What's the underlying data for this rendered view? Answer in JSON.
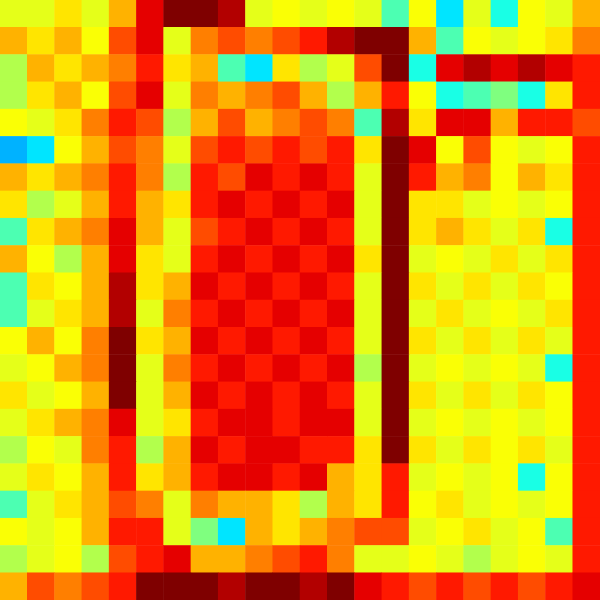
{
  "chart_data": {
    "type": "heatmap",
    "tick_labels": false,
    "zlim": [
      0,
      1
    ],
    "cells": [
      [
        0.6,
        0.6,
        0.65,
        0.6,
        0.7,
        0.9,
        1,
        1,
        0.95,
        0.6,
        0.62,
        0.6,
        0.62,
        0.6,
        0.45,
        0.62,
        0.35,
        0.6,
        0.4,
        0.62,
        0.6,
        0.7
      ],
      [
        0.7,
        0.65,
        0.7,
        0.62,
        0.8,
        0.9,
        0.6,
        0.75,
        0.8,
        0.75,
        0.8,
        0.85,
        0.95,
        1,
        1,
        0.7,
        0.45,
        0.62,
        0.6,
        0.62,
        0.65,
        0.75
      ],
      [
        0.55,
        0.7,
        0.65,
        0.7,
        0.75,
        0.85,
        0.65,
        0.7,
        0.45,
        0.35,
        0.65,
        0.55,
        0.6,
        0.8,
        1,
        0.4,
        0.9,
        0.95,
        0.9,
        0.95,
        0.9,
        0.85
      ],
      [
        0.55,
        0.65,
        0.7,
        0.62,
        0.8,
        0.9,
        0.6,
        0.75,
        0.7,
        0.75,
        0.8,
        0.7,
        0.55,
        0.7,
        0.85,
        0.62,
        0.4,
        0.45,
        0.5,
        0.4,
        0.65,
        0.85
      ],
      [
        0.62,
        0.6,
        0.65,
        0.75,
        0.85,
        0.8,
        0.55,
        0.7,
        0.8,
        0.7,
        0.75,
        0.8,
        0.75,
        0.45,
        0.95,
        0.65,
        0.9,
        0.9,
        0.7,
        0.85,
        0.85,
        0.8
      ],
      [
        0.3,
        0.35,
        0.62,
        0.7,
        0.8,
        0.75,
        0.6,
        0.8,
        0.85,
        0.8,
        0.85,
        0.8,
        0.85,
        0.65,
        1,
        0.9,
        0.62,
        0.8,
        0.62,
        0.6,
        0.62,
        0.85
      ],
      [
        0.7,
        0.65,
        0.7,
        0.75,
        0.85,
        0.75,
        0.55,
        0.85,
        0.8,
        0.9,
        0.85,
        0.9,
        0.85,
        0.6,
        1,
        0.85,
        0.7,
        0.75,
        0.62,
        0.7,
        0.65,
        0.85
      ],
      [
        0.65,
        0.55,
        0.6,
        0.7,
        0.85,
        0.7,
        0.65,
        0.85,
        0.9,
        0.85,
        0.9,
        0.85,
        0.9,
        0.6,
        1,
        0.65,
        0.65,
        0.6,
        0.62,
        0.6,
        0.62,
        0.85
      ],
      [
        0.45,
        0.65,
        0.7,
        0.75,
        0.9,
        0.7,
        0.6,
        0.8,
        0.85,
        0.9,
        0.85,
        0.9,
        0.85,
        0.6,
        1,
        0.65,
        0.7,
        0.65,
        0.6,
        0.65,
        0.4,
        0.85
      ],
      [
        0.7,
        0.62,
        0.55,
        0.7,
        0.9,
        0.65,
        0.6,
        0.85,
        0.9,
        0.85,
        0.9,
        0.85,
        0.9,
        0.65,
        1,
        0.6,
        0.62,
        0.6,
        0.65,
        0.6,
        0.65,
        0.85
      ],
      [
        0.45,
        0.65,
        0.62,
        0.7,
        0.95,
        0.65,
        0.7,
        0.9,
        0.85,
        0.9,
        0.85,
        0.9,
        0.85,
        0.6,
        1,
        0.65,
        0.6,
        0.65,
        0.6,
        0.65,
        0.62,
        0.85
      ],
      [
        0.45,
        0.6,
        0.65,
        0.7,
        0.95,
        0.6,
        0.75,
        0.85,
        0.9,
        0.85,
        0.9,
        0.85,
        0.9,
        0.6,
        1,
        0.6,
        0.65,
        0.6,
        0.62,
        0.6,
        0.65,
        0.85
      ],
      [
        0.62,
        0.7,
        0.62,
        0.75,
        1,
        0.65,
        0.7,
        0.9,
        0.85,
        0.9,
        0.85,
        0.9,
        0.85,
        0.6,
        1,
        0.65,
        0.6,
        0.65,
        0.6,
        0.65,
        0.6,
        0.85
      ],
      [
        0.6,
        0.62,
        0.7,
        0.75,
        1,
        0.6,
        0.75,
        0.85,
        0.9,
        0.85,
        0.9,
        0.85,
        0.9,
        0.55,
        1,
        0.6,
        0.62,
        0.6,
        0.62,
        0.6,
        0.4,
        0.85
      ],
      [
        0.65,
        0.6,
        0.62,
        0.7,
        1,
        0.6,
        0.7,
        0.9,
        0.85,
        0.9,
        0.85,
        0.9,
        0.85,
        0.6,
        1,
        0.65,
        0.6,
        0.65,
        0.6,
        0.65,
        0.62,
        0.85
      ],
      [
        0.6,
        0.65,
        0.7,
        0.75,
        0.9,
        0.6,
        0.65,
        0.85,
        0.9,
        0.9,
        0.85,
        0.9,
        0.9,
        0.6,
        1,
        0.6,
        0.62,
        0.6,
        0.62,
        0.6,
        0.62,
        0.85
      ],
      [
        0.55,
        0.62,
        0.6,
        0.75,
        0.85,
        0.55,
        0.7,
        0.9,
        0.85,
        0.9,
        0.9,
        0.85,
        0.85,
        0.65,
        1,
        0.65,
        0.6,
        0.65,
        0.62,
        0.65,
        0.6,
        0.85
      ],
      [
        0.6,
        0.65,
        0.62,
        0.7,
        0.85,
        0.65,
        0.7,
        0.85,
        0.9,
        0.9,
        0.85,
        0.9,
        0.7,
        0.65,
        0.85,
        0.6,
        0.62,
        0.6,
        0.62,
        0.4,
        0.62,
        0.85
      ],
      [
        0.45,
        0.6,
        0.65,
        0.7,
        0.8,
        0.75,
        0.6,
        0.75,
        0.7,
        0.7,
        0.65,
        0.55,
        0.7,
        0.65,
        0.85,
        0.62,
        0.65,
        0.6,
        0.62,
        0.6,
        0.62,
        0.85
      ],
      [
        0.62,
        0.6,
        0.62,
        0.7,
        0.85,
        0.85,
        0.6,
        0.5,
        0.35,
        0.7,
        0.65,
        0.7,
        0.75,
        0.8,
        0.8,
        0.6,
        0.62,
        0.65,
        0.6,
        0.62,
        0.45,
        0.85
      ],
      [
        0.55,
        0.6,
        0.62,
        0.55,
        0.8,
        0.85,
        0.9,
        0.7,
        0.7,
        0.75,
        0.8,
        0.85,
        0.75,
        0.6,
        0.6,
        0.62,
        0.6,
        0.55,
        0.6,
        0.62,
        0.6,
        0.85
      ],
      [
        0.7,
        0.8,
        0.75,
        0.8,
        0.85,
        1,
        1,
        1,
        0.95,
        1,
        1,
        0.95,
        1,
        0.9,
        0.85,
        0.8,
        0.85,
        0.8,
        0.85,
        0.8,
        0.85,
        0.9
      ]
    ]
  }
}
